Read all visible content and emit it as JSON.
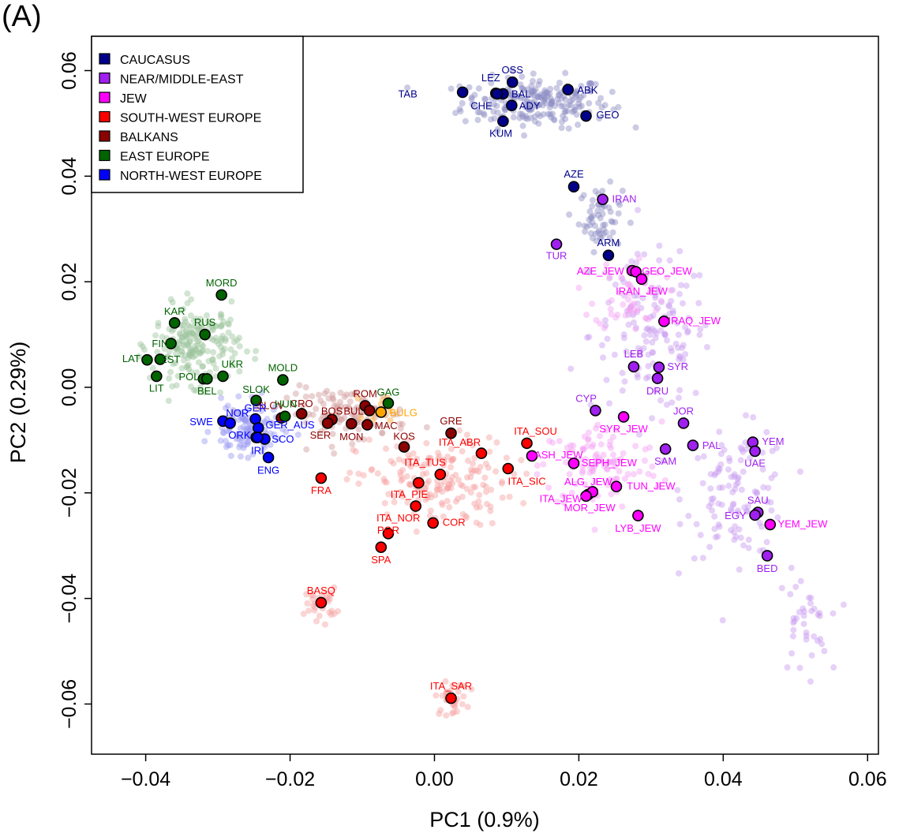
{
  "panel_label": "(A)",
  "chart_data": {
    "type": "scatter",
    "xlabel": "PC1 (0.9%)",
    "ylabel": "PC2 (0.29%)",
    "xlim": [
      -0.0475,
      0.0615
    ],
    "ylim": [
      -0.0695,
      0.0665
    ],
    "xticks": [
      -0.04,
      -0.02,
      0.0,
      0.02,
      0.04,
      0.06
    ],
    "xtick_labels": [
      "−0.04",
      "−0.02",
      "0.00",
      "0.02",
      "0.04",
      "0.06"
    ],
    "yticks": [
      -0.06,
      -0.04,
      -0.02,
      0.0,
      0.02,
      0.04,
      0.06
    ],
    "ytick_labels": [
      "−0.06",
      "−0.04",
      "−0.02",
      "0.00",
      "0.02",
      "0.04",
      "0.06"
    ],
    "legend_position": "top-left",
    "groups": [
      {
        "name": "CAUCASUS",
        "color": "#00008b"
      },
      {
        "name": "NEAR/MIDDLE-EAST",
        "color": "#a020f0"
      },
      {
        "name": "JEW",
        "color": "#ff00ff"
      },
      {
        "name": "SOUTH-WEST EUROPE",
        "color": "#ff0000"
      },
      {
        "name": "BALKANS",
        "color": "#8b0000"
      },
      {
        "name": "EAST EUROPE",
        "color": "#006400"
      },
      {
        "name": "NORTH-WEST EUROPE",
        "color": "#0000ff"
      }
    ],
    "populations": [
      {
        "label": "TAB",
        "group": "CAUCASUS",
        "x": 0.0039,
        "y": 0.0559,
        "lx": -0.0037,
        "ly": 0.0557
      },
      {
        "label": "LEZ",
        "group": "CAUCASUS",
        "x": 0.0085,
        "y": 0.0557,
        "lx": 0.0078,
        "ly": 0.0587
      },
      {
        "label": "OSS",
        "group": "CAUCASUS",
        "x": 0.0108,
        "y": 0.0578,
        "lx": 0.0108,
        "ly": 0.0602
      },
      {
        "label": "BAL",
        "group": "CAUCASUS",
        "x": 0.0095,
        "y": 0.0556,
        "lx": 0.012,
        "ly": 0.0557
      },
      {
        "label": "CHE",
        "group": "CAUCASUS",
        "x": 0.0087,
        "y": 0.0556,
        "lx": 0.0065,
        "ly": 0.0534
      },
      {
        "label": "ADY",
        "group": "CAUCASUS",
        "x": 0.0107,
        "y": 0.0534,
        "lx": 0.0132,
        "ly": 0.0534
      },
      {
        "label": "KUM",
        "group": "CAUCASUS",
        "x": 0.0095,
        "y": 0.0504,
        "lx": 0.0092,
        "ly": 0.0482
      },
      {
        "label": "ABK",
        "group": "CAUCASUS",
        "x": 0.0185,
        "y": 0.0564,
        "lx": 0.0212,
        "ly": 0.0564
      },
      {
        "label": "GEO",
        "group": "CAUCASUS",
        "x": 0.021,
        "y": 0.0514,
        "lx": 0.024,
        "ly": 0.0517
      },
      {
        "label": "AZE",
        "group": "CAUCASUS",
        "x": 0.0193,
        "y": 0.038,
        "lx": 0.0193,
        "ly": 0.0405
      },
      {
        "label": "ARM",
        "group": "CAUCASUS",
        "x": 0.0241,
        "y": 0.025,
        "lx": 0.0241,
        "ly": 0.0275
      },
      {
        "label": "IRAN",
        "group": "NEAR/MIDDLE-EAST",
        "x": 0.0233,
        "y": 0.0356,
        "lx": 0.0263,
        "ly": 0.0358
      },
      {
        "label": "TUR",
        "group": "NEAR/MIDDLE-EAST",
        "x": 0.0169,
        "y": 0.0271,
        "lx": 0.0169,
        "ly": 0.025
      },
      {
        "label": "LEB",
        "group": "NEAR/MIDDLE-EAST",
        "x": 0.0276,
        "y": 0.0039,
        "lx": 0.0276,
        "ly": 0.0064
      },
      {
        "label": "SYR",
        "group": "NEAR/MIDDLE-EAST",
        "x": 0.0311,
        "y": 0.0038,
        "lx": 0.0337,
        "ly": 0.004
      },
      {
        "label": "DRU",
        "group": "NEAR/MIDDLE-EAST",
        "x": 0.0309,
        "y": 0.0017,
        "lx": 0.0309,
        "ly": -0.0006
      },
      {
        "label": "CYP",
        "group": "NEAR/MIDDLE-EAST",
        "x": 0.0223,
        "y": -0.0044,
        "lx": 0.021,
        "ly": -0.002
      },
      {
        "label": "JOR",
        "group": "NEAR/MIDDLE-EAST",
        "x": 0.0345,
        "y": -0.0068,
        "lx": 0.0345,
        "ly": -0.0044
      },
      {
        "label": "PAL",
        "group": "NEAR/MIDDLE-EAST",
        "x": 0.0358,
        "y": -0.011,
        "lx": 0.0384,
        "ly": -0.0109
      },
      {
        "label": "SAM",
        "group": "NEAR/MIDDLE-EAST",
        "x": 0.032,
        "y": -0.0117,
        "lx": 0.032,
        "ly": -0.0139
      },
      {
        "label": "YEM",
        "group": "NEAR/MIDDLE-EAST",
        "x": 0.0441,
        "y": -0.0104,
        "lx": 0.0469,
        "ly": -0.0102
      },
      {
        "label": "UAE",
        "group": "NEAR/MIDDLE-EAST",
        "x": 0.0444,
        "y": -0.0121,
        "lx": 0.0444,
        "ly": -0.0143
      },
      {
        "label": "SAU",
        "group": "NEAR/MIDDLE-EAST",
        "x": 0.0448,
        "y": -0.0237,
        "lx": 0.0448,
        "ly": -0.0213
      },
      {
        "label": "EGY",
        "group": "NEAR/MIDDLE-EAST",
        "x": 0.0444,
        "y": -0.0242,
        "lx": 0.0417,
        "ly": -0.0242
      },
      {
        "label": "BED",
        "group": "NEAR/MIDDLE-EAST",
        "x": 0.0461,
        "y": -0.0319,
        "lx": 0.0461,
        "ly": -0.0342
      },
      {
        "label": "AZE_JEW",
        "group": "JEW",
        "x": 0.0274,
        "y": 0.0221,
        "lx": 0.023,
        "ly": 0.0221
      },
      {
        "label": "GEO_JEW",
        "group": "JEW",
        "x": 0.0279,
        "y": 0.0219,
        "lx": 0.0322,
        "ly": 0.0221
      },
      {
        "label": "IRAN_JEW",
        "group": "JEW",
        "x": 0.0287,
        "y": 0.0205,
        "lx": 0.0287,
        "ly": 0.0183
      },
      {
        "label": "IRAQ_JEW",
        "group": "JEW",
        "x": 0.0318,
        "y": 0.0125,
        "lx": 0.036,
        "ly": 0.0127
      },
      {
        "label": "SYR_JEW",
        "group": "JEW",
        "x": 0.0262,
        "y": -0.0056,
        "lx": 0.0262,
        "ly": -0.0078
      },
      {
        "label": "ASH_JEW",
        "group": "JEW",
        "x": 0.0135,
        "y": -0.013,
        "lx": 0.0172,
        "ly": -0.0127
      },
      {
        "label": "SEPH_JEW",
        "group": "JEW",
        "x": 0.0193,
        "y": -0.0144,
        "lx": 0.0242,
        "ly": -0.0142
      },
      {
        "label": "ALG_JEW",
        "group": "JEW",
        "x": 0.0213,
        "y": -0.0203,
        "lx": 0.0213,
        "ly": -0.0178
      },
      {
        "label": "TUN_JEW",
        "group": "JEW",
        "x": 0.0252,
        "y": -0.0188,
        "lx": 0.03,
        "ly": -0.0186
      },
      {
        "label": "ITA_JEW",
        "group": "JEW",
        "x": 0.0219,
        "y": -0.0198,
        "lx": 0.0175,
        "ly": -0.021
      },
      {
        "label": "MOR_JEW",
        "group": "JEW",
        "x": 0.021,
        "y": -0.0206,
        "lx": 0.0215,
        "ly": -0.0227
      },
      {
        "label": "LYB_JEW",
        "group": "JEW",
        "x": 0.0282,
        "y": -0.0243,
        "lx": 0.0282,
        "ly": -0.0266
      },
      {
        "label": "YEM_JEW",
        "group": "JEW",
        "x": 0.0465,
        "y": -0.026,
        "lx": 0.051,
        "ly": -0.0258
      },
      {
        "label": "ITA_SOU",
        "group": "SOUTH-WEST EUROPE",
        "x": 0.0128,
        "y": -0.0106,
        "lx": 0.014,
        "ly": -0.0082
      },
      {
        "label": "ITA_ABR",
        "group": "SOUTH-WEST EUROPE",
        "x": 0.0065,
        "y": -0.0125,
        "lx": 0.0035,
        "ly": -0.0103
      },
      {
        "label": "ITA_SIC",
        "group": "SOUTH-WEST EUROPE",
        "x": 0.0102,
        "y": -0.0154,
        "lx": 0.0128,
        "ly": -0.0177
      },
      {
        "label": "ITA_TUS",
        "group": "SOUTH-WEST EUROPE",
        "x": 0.0008,
        "y": -0.0165,
        "lx": -0.0013,
        "ly": -0.0141
      },
      {
        "label": "ITA_PIE",
        "group": "SOUTH-WEST EUROPE",
        "x": -0.0022,
        "y": -0.0181,
        "lx": -0.0035,
        "ly": -0.0202
      },
      {
        "label": "ITA_NOR",
        "group": "SOUTH-WEST EUROPE",
        "x": -0.0026,
        "y": -0.0225,
        "lx": -0.005,
        "ly": -0.0247
      },
      {
        "label": "COR",
        "group": "SOUTH-WEST EUROPE",
        "x": -0.0002,
        "y": -0.0257,
        "lx": 0.0027,
        "ly": -0.0255
      },
      {
        "label": "POR",
        "group": "SOUTH-WEST EUROPE",
        "x": -0.0064,
        "y": -0.0277,
        "lx": -0.0064,
        "ly": -0.027
      },
      {
        "label": "SPA",
        "group": "SOUTH-WEST EUROPE",
        "x": -0.0074,
        "y": -0.0303,
        "lx": -0.0074,
        "ly": -0.0326
      },
      {
        "label": "FRA",
        "group": "SOUTH-WEST EUROPE",
        "x": -0.0157,
        "y": -0.0172,
        "lx": -0.0157,
        "ly": -0.0194
      },
      {
        "label": "BASQ",
        "group": "SOUTH-WEST EUROPE",
        "x": -0.0157,
        "y": -0.0408,
        "lx": -0.0157,
        "ly": -0.0384
      },
      {
        "label": "ITA_SAR",
        "group": "SOUTH-WEST EUROPE",
        "x": 0.0023,
        "y": -0.0589,
        "lx": 0.0023,
        "ly": -0.0565
      },
      {
        "label": "ROM",
        "group": "BALKANS",
        "x": -0.0096,
        "y": -0.0035,
        "lx": -0.0096,
        "ly": -0.0011
      },
      {
        "label": "BUL",
        "group": "BALKANS",
        "x": -0.009,
        "y": -0.0044,
        "lx": -0.0112,
        "ly": -0.0044
      },
      {
        "label": "BOS",
        "group": "BALKANS",
        "x": -0.0142,
        "y": -0.0061,
        "lx": -0.0142,
        "ly": -0.0044
      },
      {
        "label": "SER",
        "group": "BALKANS",
        "x": -0.0148,
        "y": -0.0068,
        "lx": -0.0158,
        "ly": -0.009
      },
      {
        "label": "MON",
        "group": "BALKANS",
        "x": -0.0115,
        "y": -0.0069,
        "lx": -0.0115,
        "ly": -0.0093
      },
      {
        "label": "MAC",
        "group": "BALKANS",
        "x": -0.0093,
        "y": -0.0071,
        "lx": -0.0067,
        "ly": -0.0072
      },
      {
        "label": "CRO",
        "group": "BALKANS",
        "x": -0.0184,
        "y": -0.005,
        "lx": -0.0184,
        "ly": -0.003
      },
      {
        "label": "KOS",
        "group": "BALKANS",
        "x": -0.0042,
        "y": -0.0113,
        "lx": -0.0042,
        "ly": -0.0092
      },
      {
        "label": "GRE",
        "group": "BALKANS",
        "x": 0.0023,
        "y": -0.0087,
        "lx": 0.0023,
        "ly": -0.0063
      },
      {
        "label": "SLOV",
        "group": "BALKANS",
        "x": -0.0212,
        "y": -0.0058,
        "lx": -0.0227,
        "ly": -0.0034
      },
      {
        "label": "BULG",
        "group": "BALKANS",
        "x": -0.0074,
        "y": -0.0047,
        "lx": -0.0043,
        "ly": -0.0047
      },
      {
        "label": "MORD",
        "group": "EAST EUROPE",
        "x": -0.0295,
        "y": 0.0175,
        "lx": -0.0295,
        "ly": 0.0199
      },
      {
        "label": "KAR",
        "group": "EAST EUROPE",
        "x": -0.036,
        "y": 0.0122,
        "lx": -0.036,
        "ly": 0.0145
      },
      {
        "label": "RUS",
        "group": "EAST EUROPE",
        "x": -0.0318,
        "y": 0.01,
        "lx": -0.0318,
        "ly": 0.0124
      },
      {
        "label": "FIN",
        "group": "EAST EUROPE",
        "x": -0.0365,
        "y": 0.0083,
        "lx": -0.038,
        "ly": 0.0084
      },
      {
        "label": "LAT",
        "group": "EAST EUROPE",
        "x": -0.0398,
        "y": 0.0052,
        "lx": -0.042,
        "ly": 0.0055
      },
      {
        "label": "EST",
        "group": "EAST EUROPE",
        "x": -0.038,
        "y": 0.0053,
        "lx": -0.0366,
        "ly": 0.0054
      },
      {
        "label": "LIT",
        "group": "EAST EUROPE",
        "x": -0.0385,
        "y": 0.0021,
        "lx": -0.0385,
        "ly": -0.0001
      },
      {
        "label": "POL",
        "group": "EAST EUROPE",
        "x": -0.032,
        "y": 0.0016,
        "lx": -0.034,
        "ly": 0.0021
      },
      {
        "label": "BEL",
        "group": "EAST EUROPE",
        "x": -0.0315,
        "y": 0.0016,
        "lx": -0.0315,
        "ly": -0.0006
      },
      {
        "label": "UKR",
        "group": "EAST EUROPE",
        "x": -0.0293,
        "y": 0.0021,
        "lx": -0.028,
        "ly": 0.0045
      },
      {
        "label": "MOLD",
        "group": "EAST EUROPE",
        "x": -0.021,
        "y": 0.0014,
        "lx": -0.021,
        "ly": 0.0038
      },
      {
        "label": "SLOK",
        "group": "EAST EUROPE",
        "x": -0.0247,
        "y": -0.0025,
        "lx": -0.0247,
        "ly": -0.0003
      },
      {
        "label": "GAG",
        "group": "EAST EUROPE",
        "x": -0.0064,
        "y": -0.003,
        "lx": -0.0064,
        "ly": -0.0008
      },
      {
        "label": "HUN",
        "group": "EAST EUROPE",
        "x": -0.0207,
        "y": -0.0055,
        "lx": -0.0206,
        "ly": -0.0031
      },
      {
        "label": "SWE",
        "group": "NORTH-WEST EUROPE",
        "x": -0.0293,
        "y": -0.0064,
        "lx": -0.0323,
        "ly": -0.0064
      },
      {
        "label": "NOR",
        "group": "NORTH-WEST EUROPE",
        "x": -0.0283,
        "y": -0.0068,
        "lx": -0.0273,
        "ly": -0.0048
      },
      {
        "label": "GER",
        "group": "NORTH-WEST EUROPE",
        "x": -0.0248,
        "y": -0.006,
        "lx": -0.0248,
        "ly": -0.0038
      },
      {
        "label": "GER_AUS",
        "group": "NORTH-WEST EUROPE",
        "x": -0.0244,
        "y": -0.0077,
        "lx": -0.02,
        "ly": -0.007
      },
      {
        "label": "ORK",
        "group": "NORTH-WEST EUROPE",
        "x": -0.0247,
        "y": -0.0095,
        "lx": -0.027,
        "ly": -0.009
      },
      {
        "label": "SCO",
        "group": "NORTH-WEST EUROPE",
        "x": -0.0235,
        "y": -0.0098,
        "lx": -0.021,
        "ly": -0.0097
      },
      {
        "label": "IRI",
        "group": "NORTH-WEST EUROPE",
        "x": -0.0245,
        "y": -0.0095,
        "lx": -0.0245,
        "ly": -0.0119
      },
      {
        "label": "ENG",
        "group": "NORTH-WEST EUROPE",
        "x": -0.023,
        "y": -0.0133,
        "lx": -0.023,
        "ly": -0.0156
      }
    ],
    "cloud_params": [
      {
        "group": "CAUCASUS",
        "center": [
          0.014,
          0.054
        ],
        "spread": [
          0.0085,
          0.004
        ],
        "count": 220
      },
      {
        "group": "CAUCASUS",
        "center": [
          0.023,
          0.032
        ],
        "spread": [
          0.0025,
          0.005
        ],
        "count": 60
      },
      {
        "group": "NEAR/MIDDLE-EAST",
        "center": [
          0.03,
          0.01
        ],
        "spread": [
          0.007,
          0.012
        ],
        "count": 140
      },
      {
        "group": "NEAR/MIDDLE-EAST",
        "center": [
          0.042,
          -0.02
        ],
        "spread": [
          0.006,
          0.01
        ],
        "count": 110
      },
      {
        "group": "NEAR/MIDDLE-EAST",
        "center": [
          0.051,
          -0.045
        ],
        "spread": [
          0.003,
          0.008
        ],
        "count": 40
      },
      {
        "group": "JEW",
        "center": [
          0.023,
          -0.015
        ],
        "spread": [
          0.007,
          0.007
        ],
        "count": 110
      },
      {
        "group": "JEW",
        "center": [
          0.027,
          0.018
        ],
        "spread": [
          0.004,
          0.006
        ],
        "count": 50
      },
      {
        "group": "SOUTH-WEST EUROPE",
        "center": [
          0.0,
          -0.018
        ],
        "spread": [
          0.009,
          0.007
        ],
        "count": 180
      },
      {
        "group": "SOUTH-WEST EUROPE",
        "center": [
          -0.0157,
          -0.041
        ],
        "spread": [
          0.0018,
          0.0025
        ],
        "count": 35
      },
      {
        "group": "SOUTH-WEST EUROPE",
        "center": [
          0.0023,
          -0.059
        ],
        "spread": [
          0.0018,
          0.0025
        ],
        "count": 35
      },
      {
        "group": "BALKANS",
        "center": [
          -0.012,
          -0.005
        ],
        "spread": [
          0.007,
          0.004
        ],
        "count": 110
      },
      {
        "group": "EAST EUROPE",
        "center": [
          -0.033,
          0.008
        ],
        "spread": [
          0.005,
          0.006
        ],
        "count": 200
      },
      {
        "group": "NORTH-WEST EUROPE",
        "center": [
          -0.026,
          -0.008
        ],
        "spread": [
          0.004,
          0.004
        ],
        "count": 120
      }
    ]
  }
}
